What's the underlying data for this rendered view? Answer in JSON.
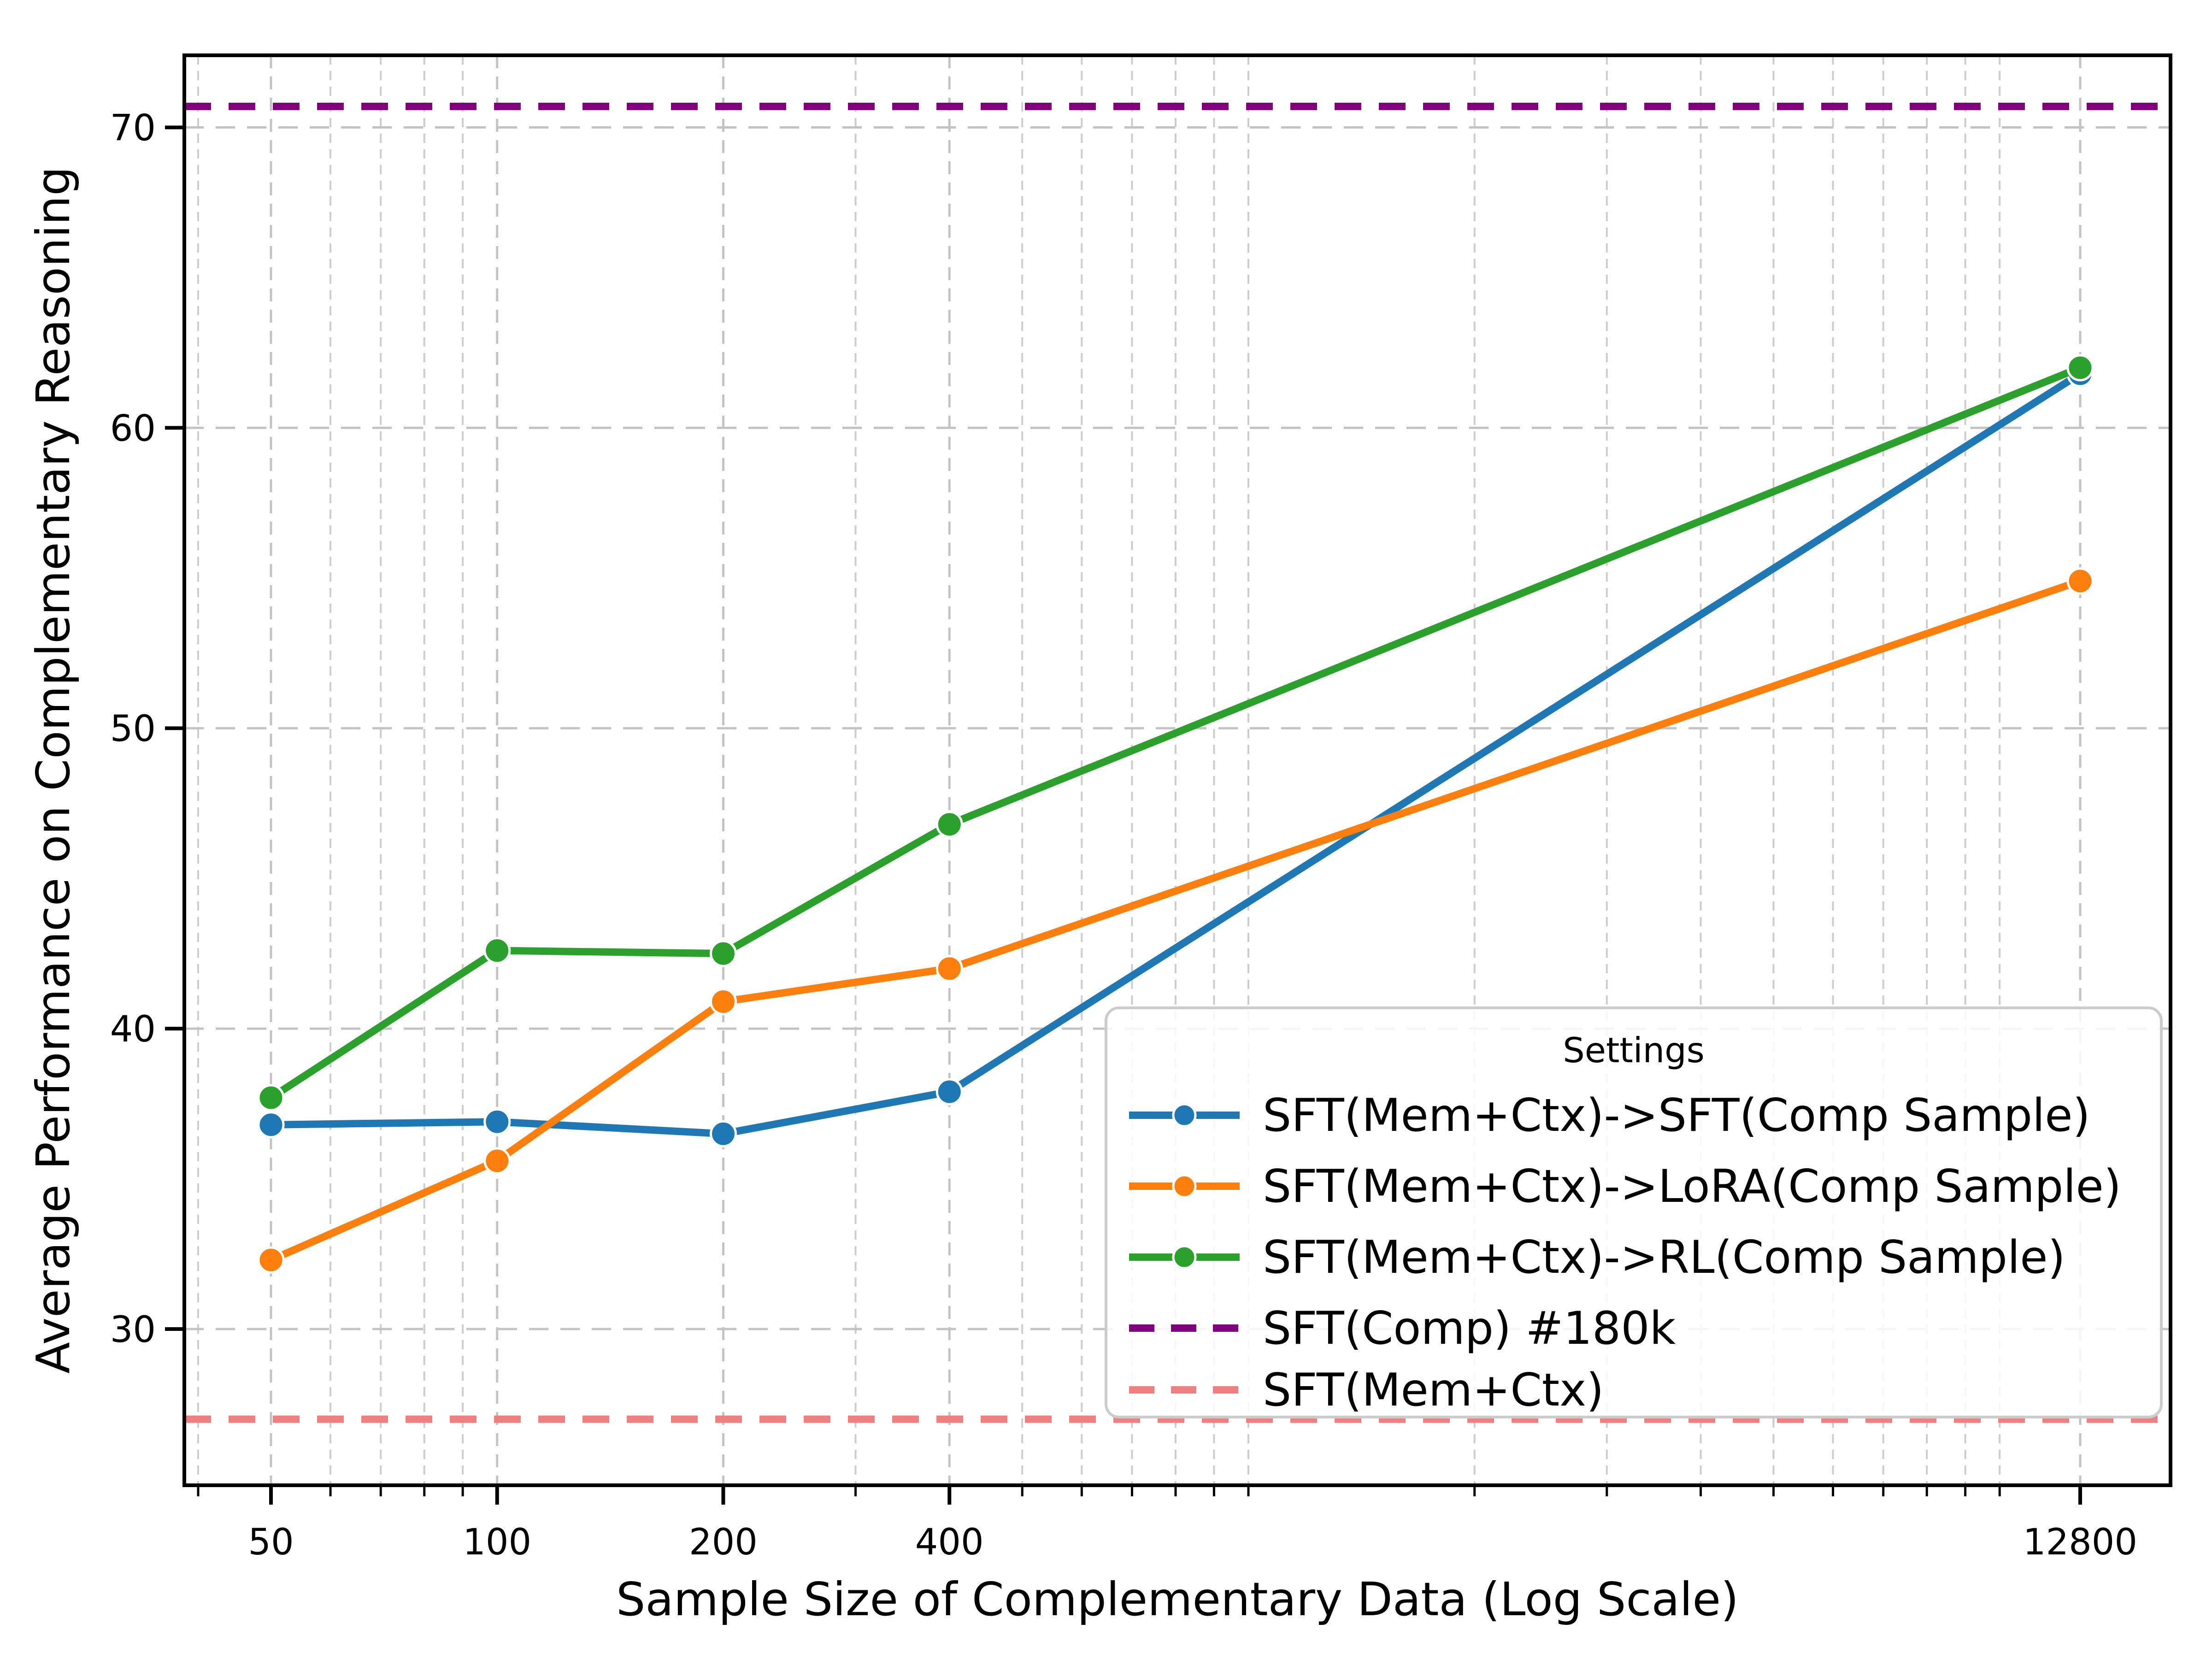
{
  "chart_data": {
    "type": "line",
    "title": "",
    "xlabel": "Sample Size of Complementary Data (Log Scale)",
    "ylabel": "Average Performance on Complementary Reasoning",
    "x_scale": "log",
    "x": [
      50,
      100,
      200,
      400,
      12800
    ],
    "x_tick_labels": [
      "50",
      "100",
      "200",
      "400",
      "12800"
    ],
    "y_ticks": [
      30,
      40,
      50,
      60,
      70
    ],
    "ylim": [
      24.8,
      72.4
    ],
    "xlim": [
      38.3,
      16900
    ],
    "grid": true,
    "minor_x_gridlines": [
      40,
      60,
      70,
      80,
      90,
      300,
      500,
      600,
      700,
      800,
      900,
      1000,
      2000,
      3000,
      4000,
      5000,
      6000,
      7000,
      8000,
      9000,
      10000
    ],
    "series": [
      {
        "name": "SFT(Mem+Ctx)->SFT(Comp Sample)",
        "color": "#1f77b4",
        "style": "solid",
        "marker": "circle",
        "values": [
          36.8,
          36.9,
          36.5,
          37.9,
          61.8
        ]
      },
      {
        "name": "SFT(Mem+Ctx)->LoRA(Comp Sample)",
        "color": "#ff7f0e",
        "style": "solid",
        "marker": "circle",
        "values": [
          32.3,
          35.6,
          40.9,
          42.0,
          54.9
        ]
      },
      {
        "name": "SFT(Mem+Ctx)->RL(Comp Sample)",
        "color": "#2ca02c",
        "style": "solid",
        "marker": "circle",
        "values": [
          37.7,
          42.6,
          42.5,
          46.8,
          62.0
        ]
      }
    ],
    "hlines": [
      {
        "name": "SFT(Comp) #180k",
        "color": "#800080",
        "style": "dashed",
        "value": 70.7
      },
      {
        "name": "SFT(Mem+Ctx)",
        "color": "#f08080",
        "style": "dashed",
        "value": 27.0
      }
    ],
    "legend": {
      "title": "Settings",
      "position": "lower right"
    },
    "colors": {
      "grid_major": "#c3c3c3",
      "grid_minor": "#cdcdcd",
      "spine": "#000000",
      "background": "#ffffff"
    }
  }
}
